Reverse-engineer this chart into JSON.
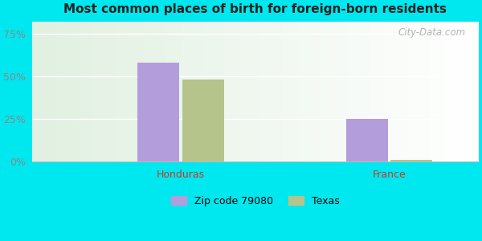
{
  "title": "Most common places of birth for foreign-born residents",
  "categories": [
    "Honduras",
    "France"
  ],
  "series": [
    {
      "label": "Zip code 79080",
      "values": [
        0.58,
        0.25
      ],
      "color": "#b39ddb"
    },
    {
      "label": "Texas",
      "values": [
        0.48,
        0.008
      ],
      "color": "#b5c48a"
    }
  ],
  "yticks": [
    0,
    0.25,
    0.5,
    0.75
  ],
  "ytick_labels": [
    "0%",
    "25%",
    "50%",
    "75%"
  ],
  "ylim": [
    0,
    0.82
  ],
  "xlabel_color": "#c0392b",
  "background_outer": "#00e8ef",
  "watermark": "City-Data.com",
  "bar_width": 0.28,
  "title_fontsize": 12
}
